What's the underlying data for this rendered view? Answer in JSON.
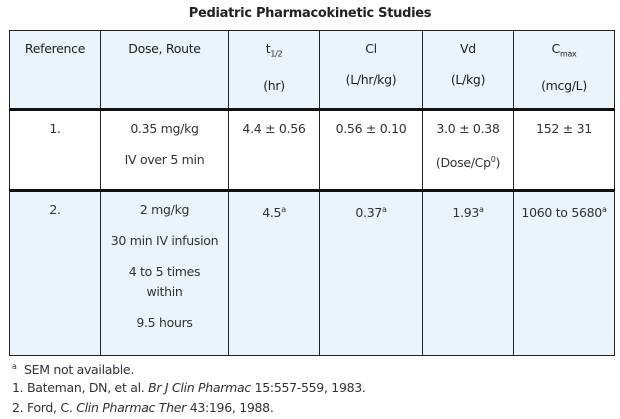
{
  "title": "Pediatric Pharmacokinetic Studies",
  "headers": [
    {
      "label": "Reference",
      "unit": ""
    },
    {
      "label": "Dose, Route",
      "unit": ""
    },
    {
      "label": "t",
      "sub": "1/2",
      "unit": "(hr)"
    },
    {
      "label": "Cl",
      "unit": "(L/hr/kg)"
    },
    {
      "label": "Vd",
      "unit": "(L/kg)"
    },
    {
      "label": "C",
      "sub": "max",
      "unit": "(mcg/L)"
    }
  ],
  "rows": [
    {
      "reference": "1.",
      "dose_lines": [
        "0.35 mg/kg",
        "IV over 5 min"
      ],
      "t_half": "4.4 ± 0.56",
      "cl": "0.56 ± 0.10",
      "vd": "3.0 ± 0.38",
      "vd_note": "(Dose/Cp",
      "vd_note_sup": "0",
      "vd_note_end": ")",
      "cmax": "152 ± 31"
    },
    {
      "reference": "2.",
      "dose_lines": [
        "2 mg/kg",
        "30 min IV infusion",
        "4 to 5 times",
        "within",
        "9.5 hours"
      ],
      "t_half": "4.5",
      "cl": "0.37",
      "vd": "1.93",
      "cmax": "1060 to 5680",
      "footnote_mark": "a"
    }
  ],
  "footnotes": {
    "a_mark": "a",
    "a_text": "SEM not available.",
    "ref1_pre": "1. Bateman, DN, et al.",
    "ref1_journal": "Br J Clin Pharmac",
    "ref1_post": "15:557-559, 1983.",
    "ref2_pre": "2. Ford, C.",
    "ref2_journal": "Clin Pharmac Ther",
    "ref2_post": "43:196, 1988."
  }
}
